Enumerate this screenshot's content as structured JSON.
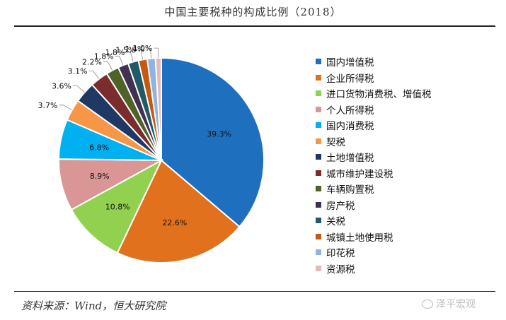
{
  "chart_data": {
    "type": "pie",
    "title": "中国主要税种的构成比例（2018）",
    "slices": [
      {
        "name": "国内增值税",
        "value": 39.3,
        "label": "39.3%",
        "color": "#1F6FBF"
      },
      {
        "name": "企业所得税",
        "value": 22.6,
        "label": "22.6%",
        "color": "#E2711D"
      },
      {
        "name": "进口货物消费税、增值税",
        "value": 10.8,
        "label": "10.8%",
        "color": "#92D050"
      },
      {
        "name": "个人所得税",
        "value": 8.9,
        "label": "8.9%",
        "color": "#DA9694"
      },
      {
        "name": "国内消费税",
        "value": 6.8,
        "label": "6.8%",
        "color": "#00B0F0"
      },
      {
        "name": "契税",
        "value": 3.7,
        "label": "3.7%",
        "color": "#F79646"
      },
      {
        "name": "土地增值税",
        "value": 3.6,
        "label": "3.6%",
        "color": "#1F3864"
      },
      {
        "name": "城市维护建设税",
        "value": 3.1,
        "label": "3.1%",
        "color": "#7B2C2C"
      },
      {
        "name": "车辆购置税",
        "value": 2.2,
        "label": "2.2%",
        "color": "#4F6228"
      },
      {
        "name": "房产税",
        "value": 1.8,
        "label": "1.8%",
        "color": "#403152"
      },
      {
        "name": "关税",
        "value": 1.8,
        "label": "1.8%",
        "color": "#215967"
      },
      {
        "name": "城镇土地使用税",
        "value": 1.5,
        "label": "1.5%",
        "color": "#C65911"
      },
      {
        "name": "印花税",
        "value": 1.4,
        "label": "1.4%",
        "color": "#8DB4E2"
      },
      {
        "name": "资源税",
        "value": 1.0,
        "label": "1.0%",
        "color": "#E6B8B7"
      }
    ],
    "legend_position": "right"
  },
  "source": "资料来源：Wind，恒大研究院",
  "watermark": "泽平宏观"
}
